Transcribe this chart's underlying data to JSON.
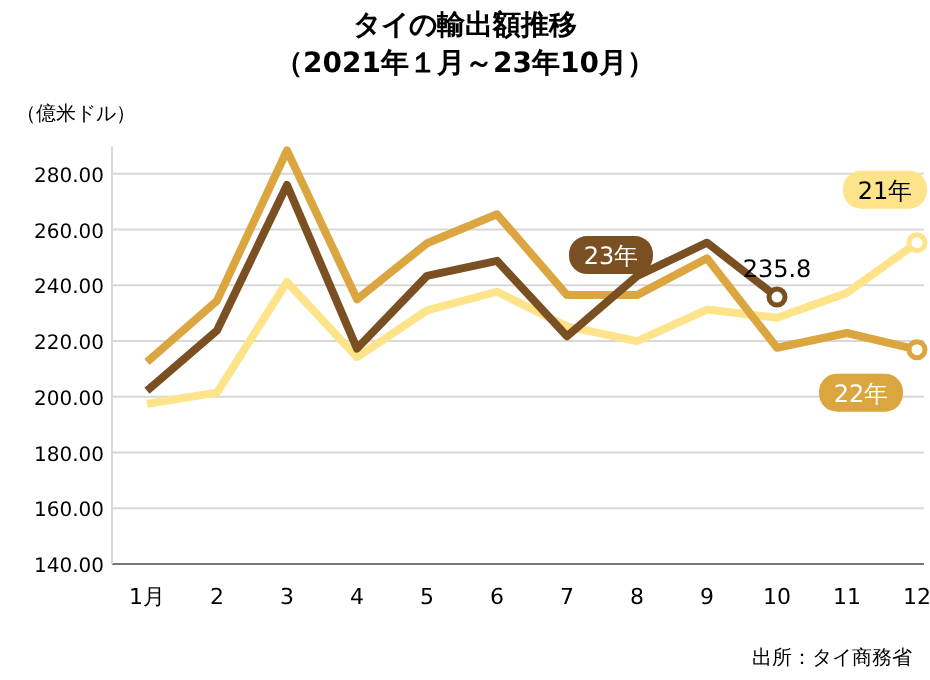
{
  "chart_data": {
    "type": "line",
    "title": "タイの輸出額推移",
    "subtitle": "（2021年１月～23年10月）",
    "ylabel": "（億米ドル）",
    "categories": [
      "1月",
      "2",
      "3",
      "4",
      "5",
      "6",
      "7",
      "8",
      "9",
      "10",
      "11",
      "12"
    ],
    "series": [
      {
        "name": "21年",
        "color": "#fde48a",
        "values": [
          197.5,
          201.5,
          241.2,
          214.2,
          231,
          237.7,
          225.3,
          220,
          231.3,
          228.4,
          237.3,
          255.3
        ]
      },
      {
        "name": "22年",
        "color": "#dba53f",
        "values": [
          212.5,
          234.5,
          288.4,
          235,
          255.1,
          265.5,
          236.5,
          236.5,
          249.7,
          217.6,
          222.9,
          216.9
        ]
      },
      {
        "name": "23年",
        "color": "#7a5023",
        "values": [
          202.2,
          223.8,
          276,
          217.3,
          243.4,
          248.8,
          221.7,
          243.3,
          255.3,
          235.8,
          null,
          null
        ]
      }
    ],
    "ylim": [
      140,
      290
    ],
    "yticks": [
      {
        "value": 140,
        "label": "140.00"
      },
      {
        "value": 160,
        "label": "160.00"
      },
      {
        "value": 180,
        "label": "180.00"
      },
      {
        "value": 200,
        "label": "200.00"
      },
      {
        "value": 220,
        "label": "220.00"
      },
      {
        "value": 240,
        "label": "240.00"
      },
      {
        "value": 260,
        "label": "260.00"
      },
      {
        "value": 280,
        "label": "280.00"
      }
    ],
    "grid": "y",
    "line_style": "solid",
    "annotations": [
      {
        "text": "235.8",
        "x": "10",
        "y": 235.8
      },
      "出所：タイ商務省"
    ]
  }
}
